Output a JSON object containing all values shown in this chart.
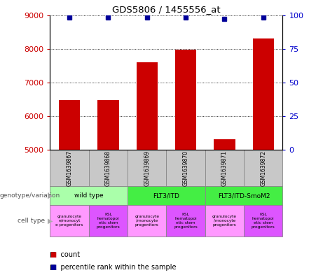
{
  "title": "GDS5806 / 1455556_at",
  "samples": [
    "GSM1639867",
    "GSM1639868",
    "GSM1639869",
    "GSM1639870",
    "GSM1639871",
    "GSM1639872"
  ],
  "counts": [
    6480,
    6480,
    7600,
    7980,
    5320,
    8300
  ],
  "percentile_ranks": [
    98,
    98,
    98,
    98,
    97,
    98
  ],
  "ylim_left": [
    5000,
    9000
  ],
  "ylim_right": [
    0,
    100
  ],
  "yticks_left": [
    5000,
    6000,
    7000,
    8000,
    9000
  ],
  "yticks_right": [
    0,
    25,
    50,
    75,
    100
  ],
  "bar_color": "#cc0000",
  "dot_color": "#000099",
  "bar_width": 0.55,
  "geno_groups": [
    {
      "label": "wild type",
      "start": 0,
      "end": 2,
      "color": "#aaffaa"
    },
    {
      "label": "FLT3/ITD",
      "start": 2,
      "end": 4,
      "color": "#44ee44"
    },
    {
      "label": "FLT3/ITD-SmoM2",
      "start": 4,
      "end": 6,
      "color": "#44ee44"
    }
  ],
  "cell_colors": [
    "#ff99ff",
    "#dd55ff",
    "#ff99ff",
    "#dd55ff",
    "#ff99ff",
    "#dd55ff"
  ],
  "cell_labels": [
    "granulocyte\ne/monocyt\ne progenitors",
    "KSL\nhematopoi\netic stem\nprogenitors",
    "granulocyte\n/monocyte\nprogenitors",
    "KSL\nhematopoi\netic stem\nprogenitors",
    "granulocyte\n/monocyte\nprogenitors",
    "KSL\nhematopoi\netic stem\nprogenitors"
  ],
  "legend_count_color": "#cc0000",
  "legend_dot_color": "#000099",
  "left_tick_color": "#cc0000",
  "right_tick_color": "#0000cc",
  "sample_box_color": "#c8c8c8",
  "fig_width": 4.61,
  "fig_height": 3.93,
  "dpi": 100
}
